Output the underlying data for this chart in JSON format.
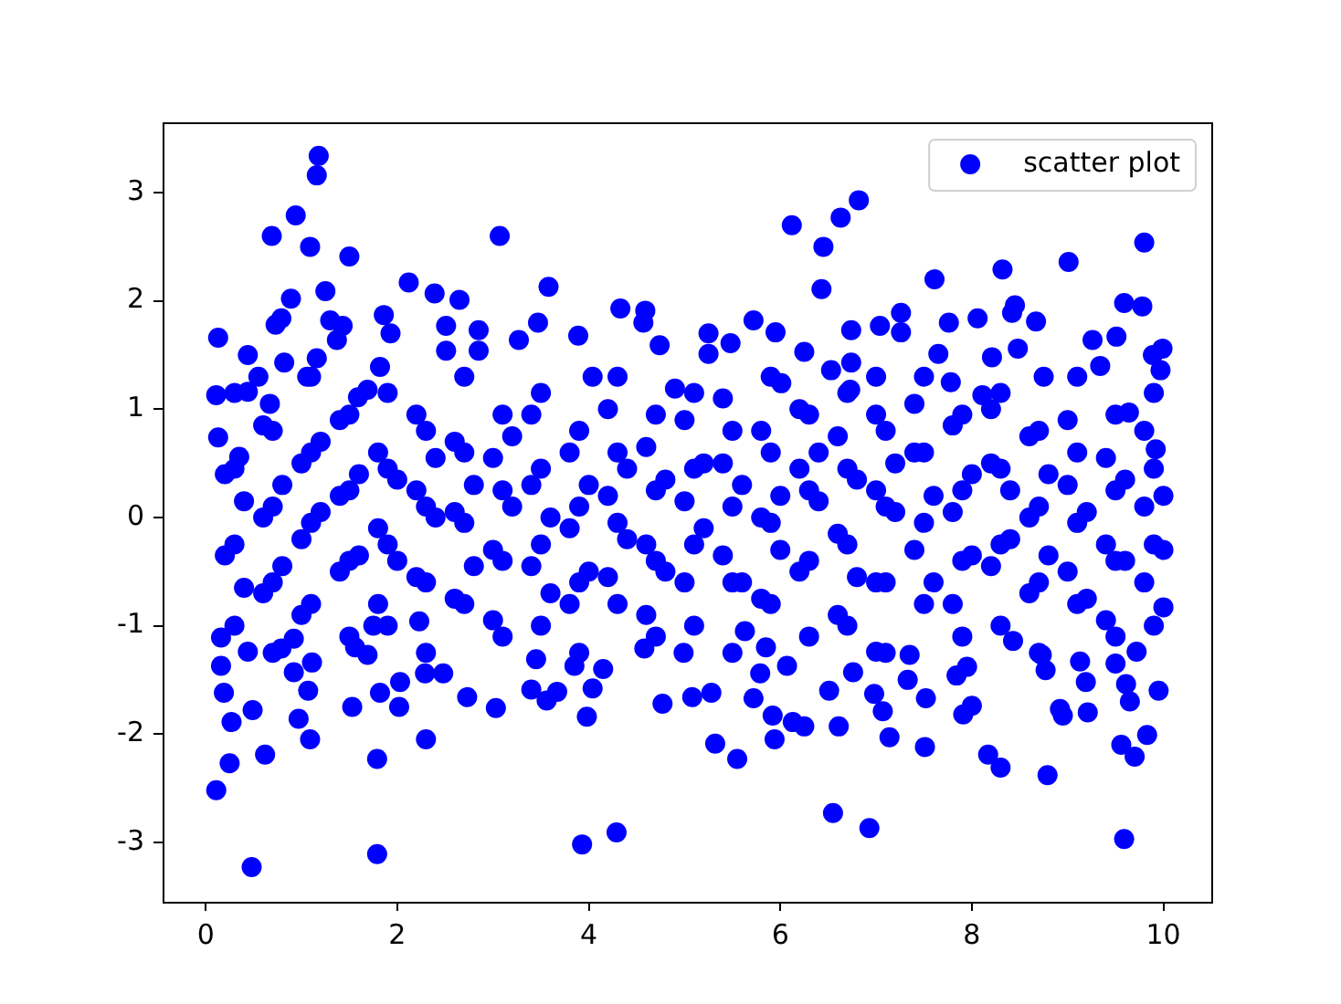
{
  "chart_data": {
    "type": "scatter",
    "x": [
      1.18,
      1.16,
      0.94,
      0.69,
      1.09,
      1.5,
      3.07,
      1.25,
      2.12,
      2.39,
      2.65,
      0.89,
      0.79,
      0.73,
      0.13,
      0.44,
      0.82,
      1.86,
      1.93,
      1.82,
      1.3,
      1.43,
      1.37,
      2.51,
      2.51,
      2.85,
      2.85,
      0.11,
      0.55,
      0.44,
      0.67,
      1.16,
      1.06,
      1.69,
      1.59,
      0.13,
      0.35,
      6.82,
      6.63,
      6.12,
      6.45,
      6.43,
      3.58,
      3.47,
      3.89,
      4.33,
      4.59,
      4.57,
      4.74,
      5.25,
      5.48,
      5.72,
      5.95,
      5.25,
      6.25,
      6.01,
      6.53,
      6.74,
      6.74,
      6.73,
      3.27,
      4.04,
      4.9,
      9.8,
      9.01,
      8.32,
      7.61,
      8.45,
      8.42,
      8.67,
      9.59,
      9.78,
      9.26,
      9.51,
      9.99,
      9.89,
      9.97,
      7.26,
      7.04,
      7.26,
      7.76,
      8.06,
      8.48,
      7.65,
      8.21,
      9.34,
      8.75,
      7.0,
      7.78,
      8.11,
      9.64,
      9.92,
      0.48,
      1.79,
      0.11,
      0.25,
      0.62,
      1.79,
      2.3,
      1.09,
      0.97,
      0.27,
      0.49,
      0.19,
      0.16,
      1.07,
      0.92,
      1.11,
      1.53,
      1.82,
      2.02,
      2.03,
      2.73,
      3.03,
      2.29,
      2.48,
      1.75,
      2.23,
      0.79,
      0.92,
      1.56,
      1.69,
      0.16,
      0.44,
      3.93,
      4.29,
      6.55,
      6.93,
      5.32,
      5.55,
      5.94,
      3.98,
      5.92,
      6.13,
      6.25,
      6.61,
      3.4,
      3.56,
      3.67,
      4.04,
      4.77,
      5.08,
      5.28,
      5.72,
      6.51,
      3.45,
      3.85,
      4.15,
      5.79,
      6.07,
      6.76,
      4.99,
      5.85,
      5.63,
      4.58,
      9.59,
      8.79,
      8.3,
      8.17,
      7.51,
      7.14,
      9.56,
      9.7,
      9.83,
      9.95,
      9.21,
      8.92,
      8.95,
      9.65,
      9.61,
      9.19,
      7.91,
      8.0,
      7.52,
      7.07,
      6.98,
      7.84,
      7.95,
      8.77,
      8.73,
      7.33,
      7.35,
      9.72,
      9.13,
      9.5,
      8.43,
      7.0,
      10.0,
      0.2,
      0.2,
      0.6,
      0.6,
      0.6,
      1.0,
      1.0,
      1.0,
      1.4,
      1.4,
      1.4,
      1.8,
      1.8,
      1.8,
      2.2,
      2.2,
      2.2,
      2.6,
      2.6,
      2.6,
      3.0,
      3.0,
      3.0,
      3.4,
      3.4,
      3.4,
      3.8,
      3.8,
      3.8,
      4.2,
      4.2,
      4.2,
      4.6,
      4.6,
      4.6,
      5.0,
      5.0,
      5.0,
      5.4,
      5.4,
      5.4,
      5.8,
      5.8,
      5.8,
      6.2,
      6.2,
      6.2,
      6.6,
      6.6,
      6.6,
      7.0,
      7.0,
      7.0,
      7.4,
      7.4,
      7.4,
      7.8,
      7.8,
      7.8,
      8.2,
      8.2,
      8.2,
      8.6,
      8.6,
      8.6,
      9.0,
      9.0,
      9.0,
      9.4,
      9.4,
      9.4,
      9.8,
      9.8,
      9.8,
      0.4,
      0.4,
      0.8,
      0.8,
      1.2,
      1.2,
      1.6,
      1.6,
      2.0,
      2.0,
      2.4,
      2.4,
      2.8,
      2.8,
      3.2,
      3.2,
      3.6,
      3.6,
      4.0,
      4.0,
      4.4,
      4.4,
      4.8,
      4.8,
      5.2,
      5.2,
      5.6,
      5.6,
      6.0,
      6.0,
      6.4,
      6.4,
      6.8,
      6.8,
      7.2,
      7.2,
      7.6,
      7.6,
      8.0,
      8.0,
      8.4,
      8.4,
      8.8,
      8.8,
      9.2,
      9.2,
      9.6,
      9.6,
      10.0,
      10.0,
      0.3,
      0.3,
      0.3,
      0.3,
      0.7,
      0.7,
      0.7,
      0.7,
      1.1,
      1.1,
      1.1,
      1.1,
      1.5,
      1.5,
      1.5,
      1.5,
      1.9,
      1.9,
      1.9,
      1.9,
      2.3,
      2.3,
      2.3,
      2.3,
      2.7,
      2.7,
      2.7,
      2.7,
      3.1,
      3.1,
      3.1,
      3.1,
      3.5,
      3.5,
      3.5,
      3.5,
      3.9,
      3.9,
      3.9,
      3.9,
      4.3,
      4.3,
      4.3,
      4.3,
      4.7,
      4.7,
      4.7,
      4.7,
      5.1,
      5.1,
      5.1,
      5.1,
      5.5,
      5.5,
      5.5,
      5.5,
      5.9,
      5.9,
      5.9,
      5.9,
      6.3,
      6.3,
      6.3,
      6.3,
      6.7,
      6.7,
      6.7,
      6.7,
      7.1,
      7.1,
      7.1,
      7.1,
      7.5,
      7.5,
      7.5,
      7.5,
      7.9,
      7.9,
      7.9,
      7.9,
      8.3,
      8.3,
      8.3,
      8.3,
      8.7,
      8.7,
      8.7,
      8.7,
      9.1,
      9.1,
      9.1,
      9.1,
      9.5,
      9.5,
      9.5,
      9.5,
      9.9,
      9.9,
      9.9,
      9.9
    ],
    "series": [
      {
        "name": "scatter plot",
        "color": "#0000ff",
        "values": [
          3.34,
          3.16,
          2.79,
          2.6,
          2.5,
          2.41,
          2.6,
          2.09,
          2.17,
          2.07,
          2.01,
          2.02,
          1.84,
          1.78,
          1.66,
          1.5,
          1.43,
          1.87,
          1.7,
          1.39,
          1.82,
          1.77,
          1.64,
          1.77,
          1.54,
          1.73,
          1.54,
          1.13,
          1.3,
          1.16,
          1.05,
          1.47,
          1.3,
          1.18,
          1.11,
          0.74,
          0.56,
          2.93,
          2.77,
          2.7,
          2.5,
          2.11,
          2.13,
          1.8,
          1.68,
          1.93,
          1.91,
          1.8,
          1.59,
          1.7,
          1.61,
          1.82,
          1.71,
          1.51,
          1.53,
          1.24,
          1.36,
          1.73,
          1.43,
          1.18,
          1.64,
          1.3,
          1.19,
          2.54,
          2.36,
          2.29,
          2.2,
          1.96,
          1.89,
          1.81,
          1.98,
          1.95,
          1.64,
          1.67,
          1.56,
          1.5,
          1.36,
          1.89,
          1.77,
          1.71,
          1.8,
          1.84,
          1.56,
          1.51,
          1.48,
          1.4,
          1.3,
          1.3,
          1.25,
          1.13,
          0.97,
          0.63,
          -3.23,
          -3.11,
          -2.52,
          -2.27,
          -2.19,
          -2.23,
          -2.05,
          -2.05,
          -1.86,
          -1.89,
          -1.78,
          -1.62,
          -1.37,
          -1.6,
          -1.43,
          -1.34,
          -1.75,
          -1.62,
          -1.75,
          -1.52,
          -1.66,
          -1.76,
          -1.44,
          -1.44,
          -1.0,
          -0.96,
          -1.21,
          -1.12,
          -1.2,
          -1.27,
          -1.11,
          -1.24,
          -3.02,
          -2.91,
          -2.73,
          -2.87,
          -2.09,
          -2.23,
          -2.05,
          -1.84,
          -1.83,
          -1.89,
          -1.93,
          -1.93,
          -1.59,
          -1.69,
          -1.61,
          -1.58,
          -1.72,
          -1.66,
          -1.62,
          -1.67,
          -1.6,
          -1.31,
          -1.37,
          -1.4,
          -1.44,
          -1.37,
          -1.43,
          -1.25,
          -1.2,
          -1.05,
          -1.21,
          -2.97,
          -2.38,
          -2.31,
          -2.19,
          -2.12,
          -2.03,
          -2.1,
          -2.21,
          -2.01,
          -1.6,
          -1.8,
          -1.77,
          -1.83,
          -1.7,
          -1.54,
          -1.52,
          -1.82,
          -1.74,
          -1.67,
          -1.79,
          -1.63,
          -1.46,
          -1.38,
          -1.41,
          -1.27,
          -1.5,
          -1.27,
          -1.24,
          -1.33,
          -1.35,
          -1.14,
          -1.24,
          -0.83,
          0.4,
          -0.35,
          0.85,
          0.0,
          -0.7,
          0.5,
          -0.2,
          -0.9,
          0.9,
          0.2,
          -0.5,
          0.6,
          -0.1,
          -0.8,
          0.25,
          -0.55,
          0.95,
          0.7,
          0.05,
          -0.75,
          0.55,
          -0.3,
          -0.95,
          0.95,
          0.3,
          -0.45,
          0.6,
          -0.1,
          -0.8,
          1.0,
          0.2,
          -0.55,
          0.65,
          -0.25,
          -0.9,
          0.9,
          0.15,
          -0.6,
          0.5,
          -0.35,
          1.1,
          0.8,
          0.0,
          -0.75,
          0.45,
          -0.5,
          1.0,
          0.75,
          -0.15,
          -0.9,
          0.95,
          0.25,
          -0.6,
          0.6,
          -0.3,
          1.05,
          0.85,
          0.05,
          -0.8,
          0.5,
          -0.45,
          1.0,
          0.75,
          0.0,
          -0.7,
          0.9,
          0.3,
          -0.5,
          0.55,
          -0.25,
          -0.95,
          0.8,
          0.1,
          -0.6,
          0.15,
          -0.65,
          0.3,
          -0.45,
          0.05,
          0.7,
          0.4,
          -0.35,
          0.35,
          -0.4,
          0.0,
          0.55,
          0.3,
          -0.45,
          0.1,
          0.75,
          0.0,
          -0.7,
          0.3,
          -0.5,
          0.45,
          -0.2,
          0.35,
          -0.5,
          0.5,
          -0.1,
          0.3,
          -0.6,
          0.2,
          -0.3,
          0.15,
          0.6,
          0.35,
          -0.55,
          0.05,
          0.5,
          0.2,
          -0.6,
          0.4,
          -0.35,
          0.25,
          -0.2,
          0.4,
          -0.35,
          0.05,
          -0.75,
          0.35,
          -0.4,
          0.2,
          -0.3,
          1.15,
          0.45,
          -0.25,
          -1.0,
          0.8,
          0.1,
          -0.6,
          -1.25,
          1.3,
          0.6,
          -0.05,
          -0.8,
          0.95,
          0.25,
          -0.4,
          -1.1,
          1.15,
          0.45,
          -0.25,
          -1.0,
          0.8,
          0.1,
          -0.6,
          -1.25,
          1.3,
          0.6,
          -0.05,
          -0.8,
          0.95,
          0.25,
          -0.4,
          -1.1,
          1.15,
          0.45,
          -0.25,
          -1.0,
          0.8,
          0.1,
          -0.6,
          -1.25,
          1.3,
          0.6,
          -0.05,
          -0.8,
          0.95,
          0.25,
          -0.4,
          -1.1,
          1.15,
          0.45,
          -0.25,
          -1.0,
          0.8,
          0.1,
          -0.6,
          -1.25,
          1.3,
          0.6,
          -0.05,
          -0.8,
          0.95,
          0.25,
          -0.4,
          -1.1,
          1.15,
          0.45,
          -0.25,
          -1.0,
          0.8,
          0.1,
          -0.6,
          -1.25,
          1.3,
          0.6,
          -0.05,
          -0.8,
          0.95,
          0.25,
          -0.4,
          -1.1,
          1.15,
          0.45,
          -0.25,
          -1.0,
          0.8,
          0.1,
          -0.6,
          -1.25,
          1.3,
          0.6,
          -0.05,
          -0.8,
          0.95,
          0.25,
          -0.4,
          -1.1,
          1.15,
          0.45,
          -0.25,
          -1.0
        ]
      }
    ],
    "xlim": [
      -0.45,
      10.5
    ],
    "ylim": [
      -3.55,
      3.65
    ],
    "xticks": [
      0,
      2,
      4,
      6,
      8,
      10
    ],
    "yticks": [
      -3,
      -2,
      -1,
      0,
      1,
      2,
      3
    ],
    "legend": "top right",
    "marker": "circle"
  }
}
